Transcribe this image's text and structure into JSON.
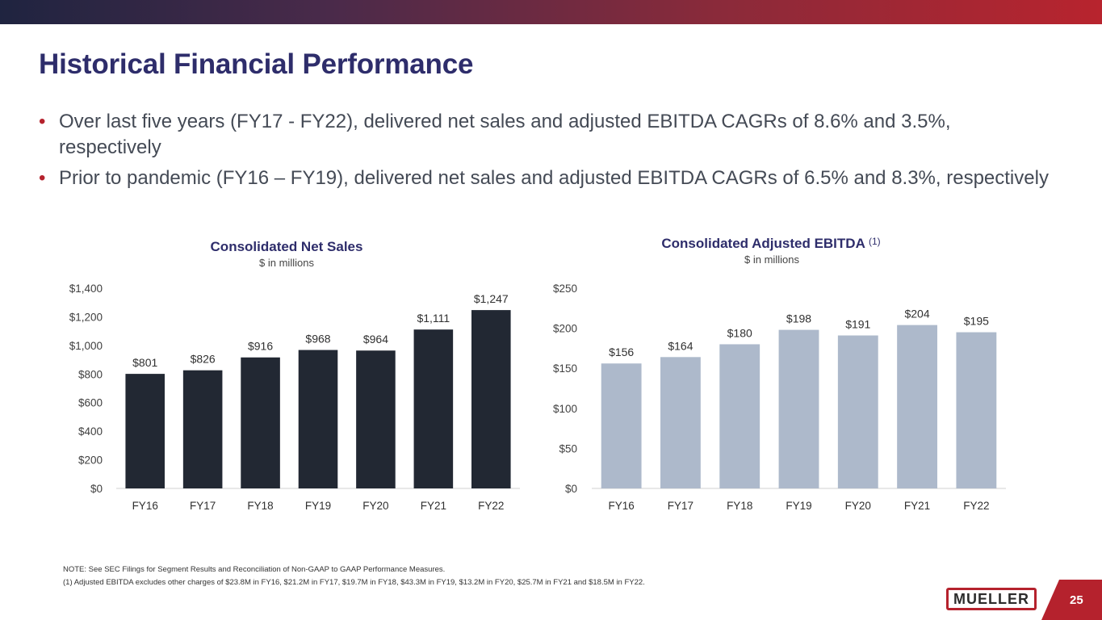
{
  "header": {
    "title": "Historical Financial Performance"
  },
  "bullets": [
    "Over last five years (FY17 - FY22), delivered net sales and adjusted EBITDA CAGRs of 8.6% and 3.5%, respectively",
    "Prior to pandemic (FY16 – FY19), delivered net sales and adjusted EBITDA CAGRs of 6.5% and 8.3%, respectively"
  ],
  "colors": {
    "title": "#2e2d6b",
    "bullet_dot": "#b5222d",
    "net_sales_bar": "#222833",
    "ebitda_bar": "#adb9cb",
    "brand_red": "#b5222d"
  },
  "chart_data": [
    {
      "type": "bar",
      "title": "Consolidated Net Sales",
      "subtitle": "$ in millions",
      "categories": [
        "FY16",
        "FY17",
        "FY18",
        "FY19",
        "FY20",
        "FY21",
        "FY22"
      ],
      "values": [
        801,
        826,
        916,
        968,
        964,
        1111,
        1247
      ],
      "data_labels": [
        "$801",
        "$826",
        "$916",
        "$968",
        "$964",
        "$1,111",
        "$1,247"
      ],
      "ylim": [
        0,
        1400
      ],
      "yticks": [
        0,
        200,
        400,
        600,
        800,
        1000,
        1200,
        1400
      ],
      "ytick_labels": [
        "$0",
        "$200",
        "$400",
        "$600",
        "$800",
        "$1,000",
        "$1,200",
        "$1,400"
      ],
      "xlabel": "",
      "ylabel": ""
    },
    {
      "type": "bar",
      "title": "Consolidated Adjusted EBITDA",
      "title_superscript": "(1)",
      "subtitle": "$ in millions",
      "categories": [
        "FY16",
        "FY17",
        "FY18",
        "FY19",
        "FY20",
        "FY21",
        "FY22"
      ],
      "values": [
        156,
        164,
        180,
        198,
        191,
        204,
        195
      ],
      "data_labels": [
        "$156",
        "$164",
        "$180",
        "$198",
        "$191",
        "$204",
        "$195"
      ],
      "ylim": [
        0,
        250
      ],
      "yticks": [
        0,
        50,
        100,
        150,
        200,
        250
      ],
      "ytick_labels": [
        "$0",
        "$50",
        "$100",
        "$150",
        "$200",
        "$250"
      ],
      "xlabel": "",
      "ylabel": ""
    }
  ],
  "footnotes": {
    "note": "NOTE:  See SEC Filings for Segment Results and Reconciliation of Non-GAAP to GAAP Performance Measures.",
    "footnote_1": "(1)  Adjusted EBITDA excludes other charges of $23.8M in FY16, $21.2M in FY17, $19.7M in FY18, $43.3M in FY19, $13.2M in FY20, $25.7M in FY21 and $18.5M in FY22."
  },
  "footer": {
    "logo_text": "MUELLER",
    "page_number": "25"
  }
}
